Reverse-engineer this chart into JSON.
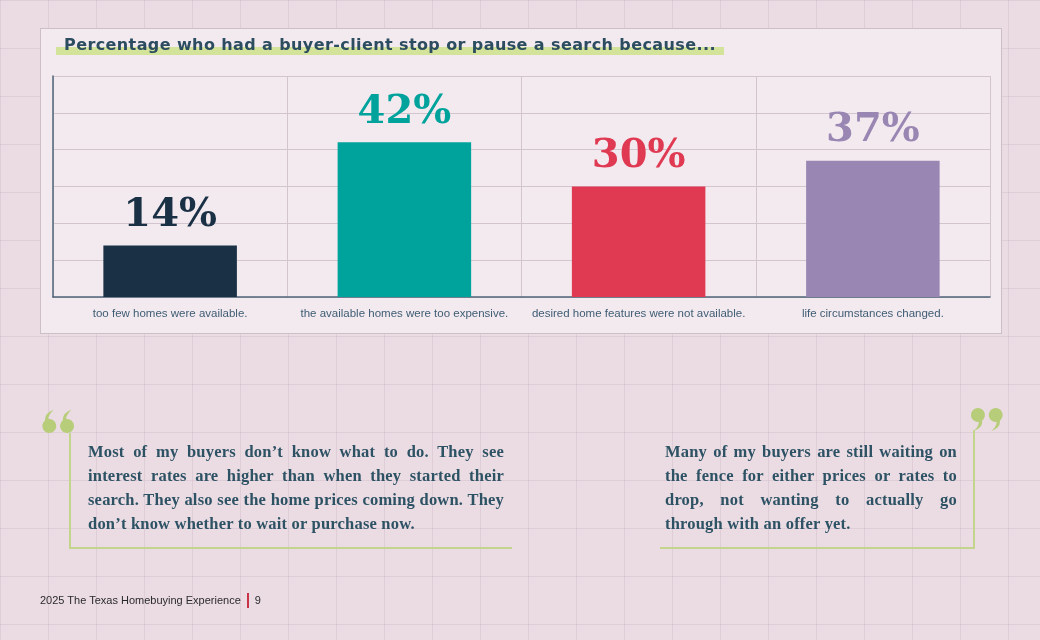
{
  "chart_data": {
    "type": "bar",
    "title": "Percentage who had a buyer-client stop or pause a search because...",
    "categories": [
      "too few homes were available.",
      "the available homes were too expensive.",
      "desired home features were not available.",
      "life circumstances changed."
    ],
    "values": [
      14,
      42,
      30,
      37
    ],
    "colors": [
      "#1a3044",
      "#00a39c",
      "#df3a52",
      "#9a86b2"
    ],
    "value_labels": [
      "14%",
      "42%",
      "30%",
      "37%"
    ],
    "ylim": [
      0,
      60
    ],
    "yticks": [
      {
        "value": 0,
        "label": null
      },
      {
        "value": 10,
        "label": null
      },
      {
        "value": 20,
        "label": null
      },
      {
        "value": 30,
        "label": null
      },
      {
        "value": 40,
        "label": null
      },
      {
        "value": 50,
        "label": null
      },
      {
        "value": 60,
        "label": null
      }
    ],
    "grid": true,
    "tick_labels": "x",
    "annotations": [
      "Most of my buyers don’t know what to do. They see interest rates are higher than when they started their search. They also see the home prices coming down. They don’t know whether to wait or purchase now.",
      "Many of my buyers are still waiting on the fence for either prices or rates to drop, not wanting to actually go through with an offer yet.",
      "2025 The Texas Homebuying Experience",
      "9"
    ]
  }
}
